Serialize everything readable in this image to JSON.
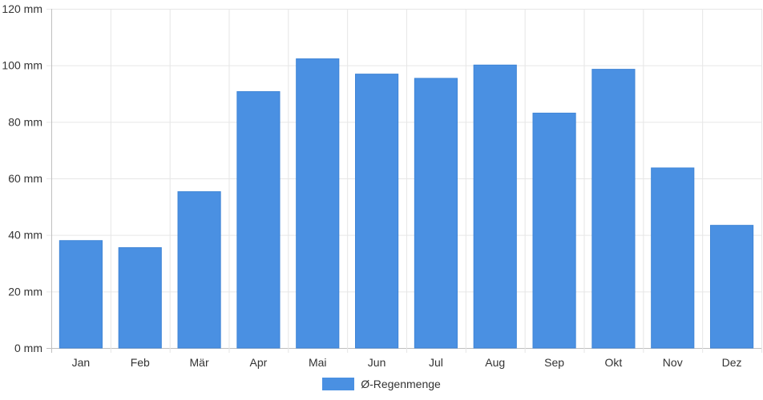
{
  "chart_data": {
    "type": "bar",
    "categories": [
      "Jan",
      "Feb",
      "Mär",
      "Apr",
      "Mai",
      "Jun",
      "Jul",
      "Aug",
      "Sep",
      "Okt",
      "Nov",
      "Dez"
    ],
    "series": [
      {
        "name": "Ø-Regenmenge",
        "values": [
          38,
          35.5,
          55.3,
          90.7,
          102.3,
          96.9,
          95.4,
          100.1,
          83.1,
          98.6,
          63.7,
          43.4
        ],
        "color": "#4a90e2"
      }
    ],
    "ylim": [
      0,
      120
    ],
    "yticks": [
      0,
      20,
      40,
      60,
      80,
      100,
      120
    ],
    "y_unit": "mm",
    "grid": true,
    "legend_position": "bottom"
  }
}
